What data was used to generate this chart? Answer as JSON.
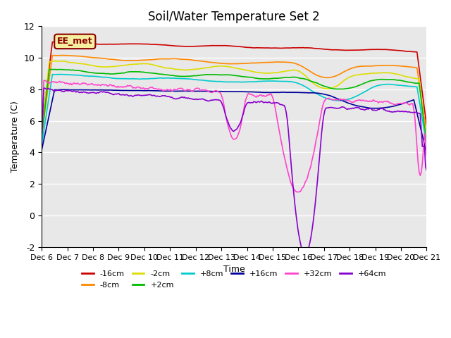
{
  "title": "Soil/Water Temperature Set 2",
  "xlabel": "Time",
  "ylabel": "Temperature (C)",
  "ylim": [
    -2,
    12
  ],
  "yticks": [
    -2,
    0,
    2,
    4,
    6,
    8,
    10,
    12
  ],
  "xlim": [
    0,
    15
  ],
  "xtick_labels": [
    "Dec 6",
    "Dec 7",
    "Dec 8",
    "Dec 9",
    "Dec 10",
    "Dec 11",
    "Dec 12",
    "Dec 13",
    "Dec 14",
    "Dec 15",
    "Dec 16",
    "Dec 17",
    "Dec 18",
    "Dec 19",
    "Dec 20",
    "Dec 21"
  ],
  "annotation_text": "EE_met",
  "annotation_box_color": "#f5f0a0",
  "annotation_border_color": "#8b0000",
  "series_colors": {
    "-16cm": "#cc0000",
    "-8cm": "#ff8800",
    "-2cm": "#dddd00",
    "+2cm": "#00bb00",
    "+8cm": "#00cccc",
    "+16cm": "#000099",
    "+32cm": "#ff44cc",
    "+64cm": "#8800cc"
  },
  "background_color": "#ffffff",
  "plot_bg_color": "#e8e8e8",
  "grid_color": "#ffffff",
  "n_points": 360
}
